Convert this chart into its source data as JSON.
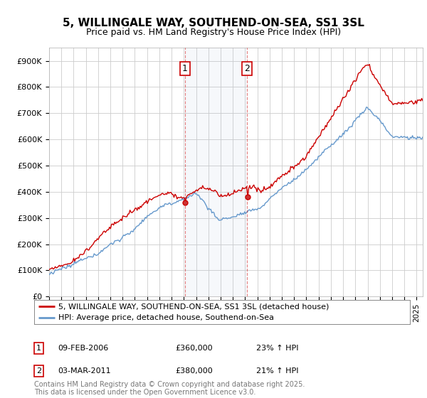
{
  "title": "5, WILLINGALE WAY, SOUTHEND-ON-SEA, SS1 3SL",
  "subtitle": "Price paid vs. HM Land Registry's House Price Index (HPI)",
  "ylabel_ticks": [
    "£0",
    "£100K",
    "£200K",
    "£300K",
    "£400K",
    "£500K",
    "£600K",
    "£700K",
    "£800K",
    "£900K"
  ],
  "ytick_values": [
    0,
    100000,
    200000,
    300000,
    400000,
    500000,
    600000,
    700000,
    800000,
    900000
  ],
  "ylim": [
    0,
    950000
  ],
  "xlim_start": 1995.0,
  "xlim_end": 2025.5,
  "transaction1_date": 2006.1,
  "transaction2_date": 2011.17,
  "legend_label_red": "5, WILLINGALE WAY, SOUTHEND-ON-SEA, SS1 3SL (detached house)",
  "legend_label_blue": "HPI: Average price, detached house, Southend-on-Sea",
  "footer_text": "Contains HM Land Registry data © Crown copyright and database right 2025.\nThis data is licensed under the Open Government Licence v3.0.",
  "annotation1_text": "09-FEB-2006",
  "annotation1_price": "£360,000",
  "annotation1_hpi": "23% ↑ HPI",
  "annotation2_text": "03-MAR-2011",
  "annotation2_price": "£380,000",
  "annotation2_hpi": "21% ↑ HPI",
  "red_color": "#cc0000",
  "blue_color": "#6699cc",
  "bg_color": "#ffffff",
  "grid_color": "#cccccc",
  "vline_color": "#cc0000",
  "box_color": "#cc0000",
  "title_fontsize": 11,
  "subtitle_fontsize": 9,
  "tick_fontsize": 8,
  "legend_fontsize": 8,
  "annotation_fontsize": 8,
  "footer_fontsize": 7
}
